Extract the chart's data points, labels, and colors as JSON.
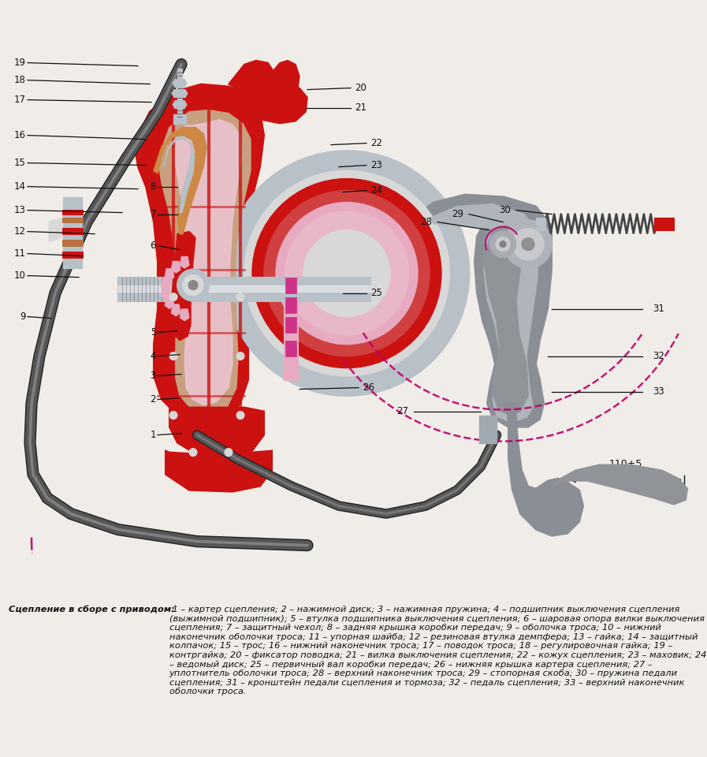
{
  "background_color": "#f0ede8",
  "caption_bold": "Сцепление в сборе с приводом:",
  "caption_text": " 1 – картер сцепления; 2 – нажимной диск; 3 – нажимная пружина; 4 – подшипник выключения сцепления (выжимной подшипник); 5 – втулка подшипника выключения сцепления; 6 – шаровая опора вилки выключения сцепления; 7 – защитный чехол; 8 – задняя крышка коробки передач; 9 – оболочка троса; 10 – нижний наконечник оболочки троса; 11 – упорная шайба; 12 – резиновая втулка демпфера; 13 – гайка; 14 – защитный колпачок; 15 – трос; 16 – нижний наконечник троса; 17 – поводок троса; 18 – регулировочная гайка; 19 – контргайка; 20 – фиксатор поводка; 21 – вилка выключения сцепления; 22 – кожух сцепления; 23 – маховик; 24 – ведомый диск; 25 – первичный вал коробки передач; 26 – нижняя крышка картера сцепления; 27 – уплотнитель оболочки троса; 28 – верхний наконечник троса; 29 – стопорная скоба; 30 – пружина педали сцепления; 31 – кронштейн педали сцепления и тормоза; 32 – педаль сцепления; 33 – верхний наконечник оболочки троса.",
  "fig_width": 8.97,
  "fig_height": 9.6,
  "dpi": 100
}
